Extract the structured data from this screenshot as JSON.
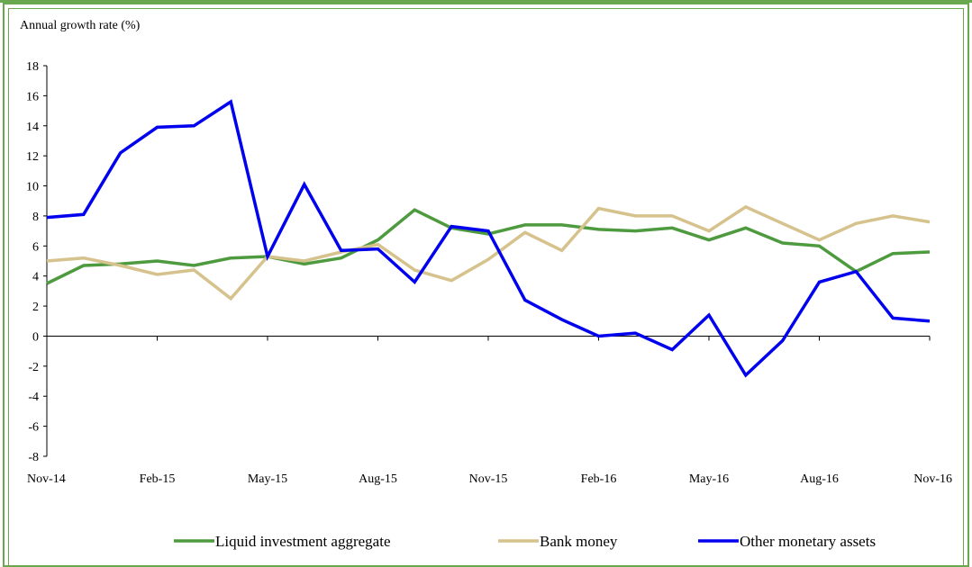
{
  "chart_data": {
    "type": "line",
    "ylabel": "Annual growth rate (%)",
    "ylim": [
      -8,
      18
    ],
    "yticks": [
      "18",
      "16",
      "14",
      "12",
      "10",
      "8",
      "6",
      "4",
      "2",
      "0",
      "-2",
      "-4",
      "-6",
      "-8"
    ],
    "x_tick_labels": [
      "Nov-14",
      "Feb-15",
      "May-15",
      "Aug-15",
      "Nov-15",
      "Feb-16",
      "May-16",
      "Aug-16",
      "Nov-16"
    ],
    "x": [
      "Nov-14",
      "Dec-14",
      "Jan-15",
      "Feb-15",
      "Mar-15",
      "Apr-15",
      "May-15",
      "Jun-15",
      "Jul-15",
      "Aug-15",
      "Sep-15",
      "Oct-15",
      "Nov-15",
      "Dec-15",
      "Jan-16",
      "Feb-16",
      "Mar-16",
      "Apr-16",
      "May-16",
      "Jun-16",
      "Jul-16",
      "Aug-16",
      "Sep-16",
      "Oct-16",
      "Nov-16"
    ],
    "series": [
      {
        "name": "Liquid investment aggregate",
        "color": "#4e9a3e",
        "values": [
          3.5,
          4.7,
          4.8,
          5.0,
          4.7,
          5.2,
          5.3,
          4.8,
          5.2,
          6.4,
          8.4,
          7.2,
          6.8,
          7.4,
          7.4,
          7.1,
          7.0,
          7.2,
          6.4,
          7.2,
          6.2,
          6.0,
          4.3,
          5.5,
          5.6
        ]
      },
      {
        "name": "Bank money",
        "color": "#d6c28c",
        "values": [
          5.0,
          5.2,
          4.7,
          4.1,
          4.4,
          2.5,
          5.3,
          5.0,
          5.6,
          6.1,
          4.4,
          3.7,
          5.1,
          6.9,
          5.7,
          8.5,
          8.0,
          8.0,
          7.0,
          8.6,
          7.5,
          6.4,
          7.5,
          8.0,
          7.6
        ]
      },
      {
        "name": "Other monetary assets",
        "color": "#0000ee",
        "values": [
          7.9,
          8.1,
          12.2,
          13.9,
          14.0,
          15.6,
          5.3,
          10.1,
          5.7,
          5.8,
          3.6,
          7.3,
          7.0,
          2.4,
          1.1,
          0.0,
          0.2,
          -0.9,
          1.4,
          -2.6,
          -0.3,
          3.6,
          4.3,
          1.2,
          1.0
        ]
      }
    ],
    "grid": false,
    "legend_position": "bottom"
  }
}
